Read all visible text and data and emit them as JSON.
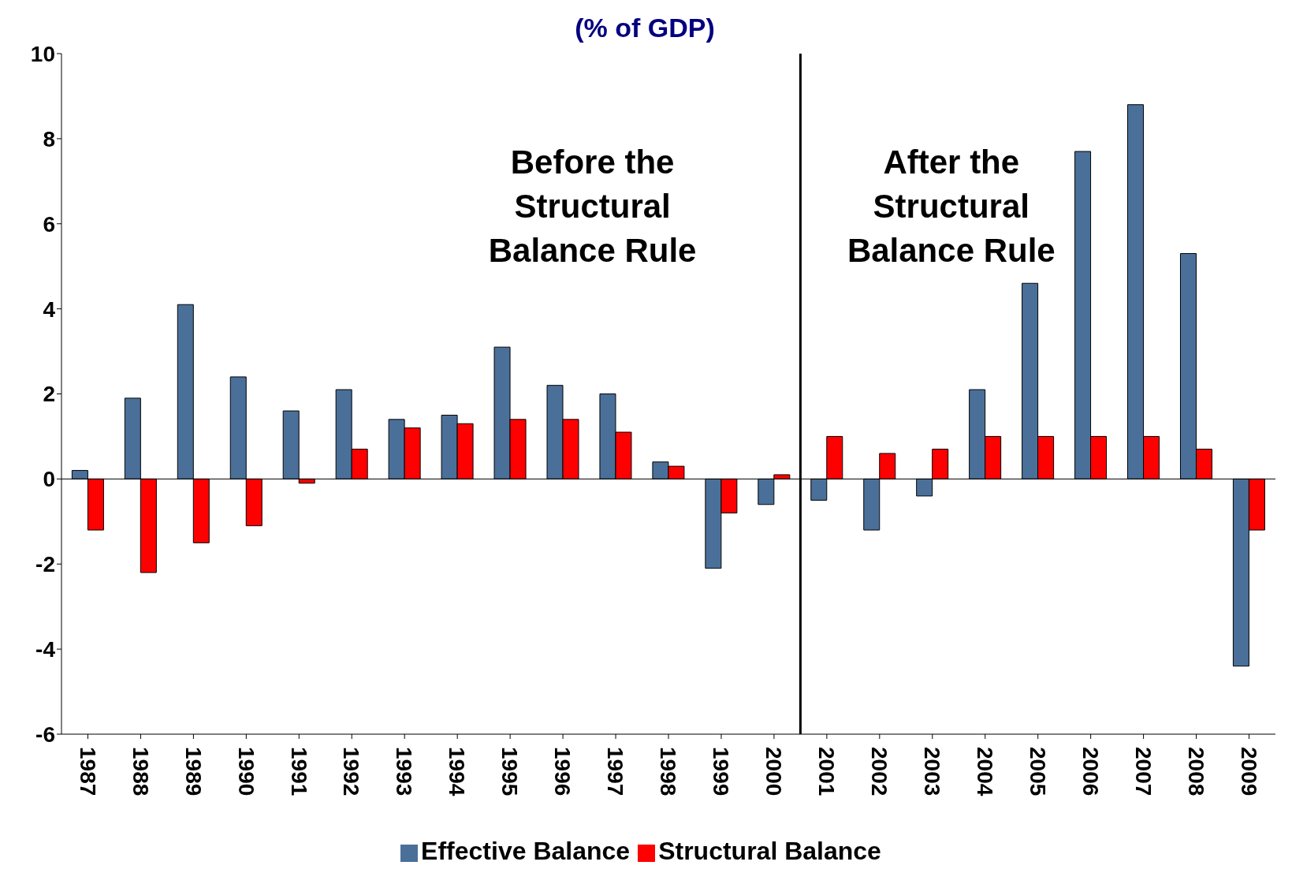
{
  "chart_data": {
    "type": "bar",
    "title": "(% of GDP)",
    "categories": [
      "1987",
      "1988",
      "1989",
      "1990",
      "1991",
      "1992",
      "1993",
      "1994",
      "1995",
      "1996",
      "1997",
      "1998",
      "1999",
      "2000",
      "2001",
      "2002",
      "2003",
      "2004",
      "2005",
      "2006",
      "2007",
      "2008",
      "2009"
    ],
    "series": [
      {
        "name": "Effective Balance",
        "color": "#4a7099",
        "values": [
          0.2,
          1.9,
          4.1,
          2.4,
          1.6,
          2.1,
          1.4,
          1.5,
          3.1,
          2.2,
          2.0,
          0.4,
          -2.1,
          -0.6,
          -0.5,
          -1.2,
          -0.4,
          2.1,
          4.6,
          7.7,
          8.8,
          5.3,
          -4.4
        ]
      },
      {
        "name": "Structural Balance",
        "color": "#ff0000",
        "values": [
          -1.2,
          -2.2,
          -1.5,
          -1.1,
          -0.1,
          0.7,
          1.2,
          1.3,
          1.4,
          1.4,
          1.1,
          0.3,
          -0.8,
          0.1,
          1.0,
          0.6,
          0.7,
          1.0,
          1.0,
          1.0,
          1.0,
          0.7,
          -1.2
        ]
      }
    ],
    "ylim": [
      -6,
      10
    ],
    "yticks": [
      -6,
      -4,
      -2,
      0,
      2,
      4,
      6,
      8,
      10
    ],
    "ref_lines": [
      {
        "axis": "x",
        "value": "2001",
        "color": "#000000"
      }
    ],
    "annotations": [
      "Before the Structural Balance Rule",
      "After the Structural Balance Rule"
    ],
    "legend": "bottom"
  }
}
